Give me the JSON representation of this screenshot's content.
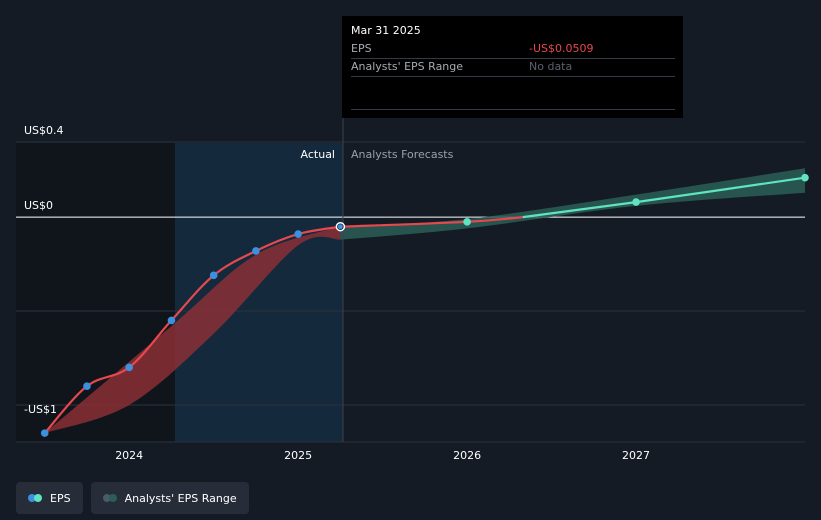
{
  "tooltip": {
    "date": "Mar 31 2025",
    "rows": [
      {
        "label": "EPS",
        "value": "-US$0.0509",
        "color": "#e5484d"
      },
      {
        "label": "Analysts' EPS Range",
        "value": "No data",
        "color": "#5b616b"
      }
    ]
  },
  "legend": {
    "eps_label": "EPS",
    "range_label": "Analysts' EPS Range"
  },
  "colors": {
    "eps_actual": "#e5484d",
    "eps_forecast": "#5fe3c1",
    "point": "#3d8fe0",
    "band_actual": "#8a2f35",
    "band_forecast": "#2a5e57",
    "grid": "#2b323d",
    "zero_line": "#ffffff"
  },
  "chart_data": {
    "type": "line",
    "y_tick_labels": [
      {
        "value": 0.4,
        "label": "US$0.4"
      },
      {
        "value": 0,
        "label": "US$0"
      },
      {
        "value": -1,
        "label": "-US$1"
      }
    ],
    "x_tick_labels": [
      {
        "value": 2024,
        "label": "2024"
      },
      {
        "value": 2025,
        "label": "2025"
      },
      {
        "value": 2026,
        "label": "2026"
      },
      {
        "value": 2027,
        "label": "2027"
      }
    ],
    "ylim": [
      -1.16,
      0.4
    ],
    "xlim": [
      2023.33,
      2028
    ],
    "region_labels": {
      "actual": "Actual",
      "forecast": "Analysts Forecasts"
    },
    "divider_x": 2025.25,
    "series": [
      {
        "name": "EPS",
        "points": [
          {
            "x": 2023.5,
            "y": -1.15
          },
          {
            "x": 2023.75,
            "y": -0.9
          },
          {
            "x": 2024.0,
            "y": -0.8
          },
          {
            "x": 2024.25,
            "y": -0.55
          },
          {
            "x": 2024.5,
            "y": -0.31
          },
          {
            "x": 2024.75,
            "y": -0.18
          },
          {
            "x": 2025.0,
            "y": -0.09
          },
          {
            "x": 2025.25,
            "y": -0.0509
          }
        ],
        "forecast_points": [
          {
            "x": 2025.25,
            "y": -0.0509
          },
          {
            "x": 2026.0,
            "y": -0.025
          },
          {
            "x": 2026.33,
            "y": 0.0
          },
          {
            "x": 2027.0,
            "y": 0.08
          },
          {
            "x": 2028.0,
            "y": 0.21
          }
        ]
      },
      {
        "name": "Analysts' EPS Range",
        "upper": [
          {
            "x": 2023.5,
            "y": -1.15
          },
          {
            "x": 2024.25,
            "y": -0.58
          },
          {
            "x": 2024.75,
            "y": -0.2
          },
          {
            "x": 2025.25,
            "y": -0.05
          },
          {
            "x": 2026.0,
            "y": -0.01
          },
          {
            "x": 2027.0,
            "y": 0.12
          },
          {
            "x": 2028.0,
            "y": 0.26
          }
        ],
        "lower": [
          {
            "x": 2023.5,
            "y": -1.15
          },
          {
            "x": 2024.0,
            "y": -1.0
          },
          {
            "x": 2024.5,
            "y": -0.62
          },
          {
            "x": 2025.0,
            "y": -0.15
          },
          {
            "x": 2025.25,
            "y": -0.12
          },
          {
            "x": 2026.0,
            "y": -0.06
          },
          {
            "x": 2027.0,
            "y": 0.06
          },
          {
            "x": 2028.0,
            "y": 0.13
          }
        ]
      }
    ]
  }
}
